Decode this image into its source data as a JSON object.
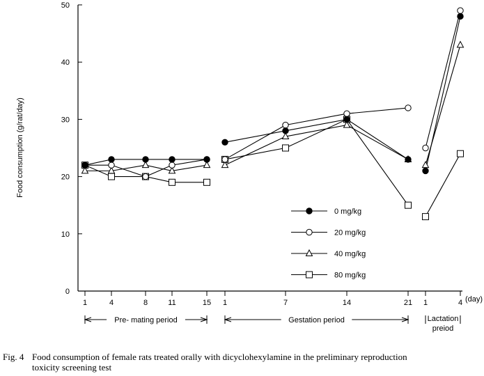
{
  "chart_data": {
    "type": "line",
    "ylabel": "Food consumption (g/rat/day)",
    "xunit": "(day)",
    "ylim": [
      0,
      50
    ],
    "yticks": [
      0,
      10,
      20,
      30,
      40,
      50
    ],
    "legend_placement": "lower-right",
    "periods": [
      {
        "name": "Pre- mating period",
        "days": [
          "1",
          "4",
          "8",
          "11",
          "15"
        ]
      },
      {
        "name": "Gestation period",
        "days": [
          "1",
          "7",
          "14",
          "21"
        ]
      },
      {
        "name": "Lactation preiod",
        "name_lines": [
          "Lactation",
          "preiod"
        ],
        "days": [
          "1",
          "4"
        ]
      }
    ],
    "series": [
      {
        "name": "0 mg/kg",
        "marker": "filled-circle",
        "values": [
          [
            22,
            23,
            23,
            23,
            23
          ],
          [
            26,
            28,
            30,
            23
          ],
          [
            21,
            48
          ]
        ]
      },
      {
        "name": "20 mg/kg",
        "marker": "open-circle",
        "values": [
          [
            22,
            22,
            20,
            22,
            23
          ],
          [
            23,
            29,
            31,
            32
          ],
          [
            25,
            49
          ]
        ]
      },
      {
        "name": "40 mg/kg",
        "marker": "open-triangle",
        "values": [
          [
            21,
            21,
            22,
            21,
            22
          ],
          [
            22,
            27,
            29,
            23
          ],
          [
            22,
            43
          ]
        ]
      },
      {
        "name": "80 mg/kg",
        "marker": "open-square",
        "values": [
          [
            22,
            20,
            20,
            19,
            19
          ],
          [
            23,
            25,
            30,
            15
          ],
          [
            13,
            24
          ]
        ]
      }
    ]
  },
  "caption": {
    "label": "Fig. 4",
    "line1": "Food consumption of female rats treated orally with dicyclohexylamine in the preliminary reproduction",
    "line2": "toxicity screening test"
  }
}
